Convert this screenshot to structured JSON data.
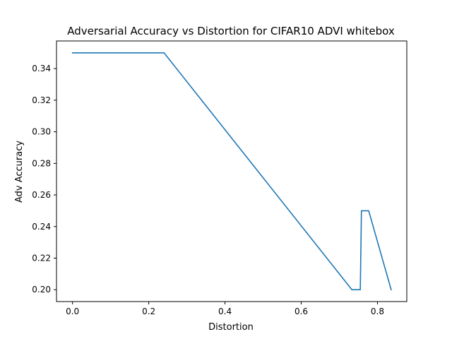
{
  "chart_data": {
    "type": "line",
    "title": "Adversarial Accuracy vs Distortion for CIFAR10 ADVI whitebox",
    "xlabel": "Distortion",
    "ylabel": "Adv Accuracy",
    "xlim": [
      -0.042,
      0.877
    ],
    "ylim": [
      0.1925,
      0.3575
    ],
    "xticks": [
      0.0,
      0.2,
      0.4,
      0.6,
      0.8
    ],
    "xtick_labels": [
      "0.0",
      "0.2",
      "0.4",
      "0.6",
      "0.8"
    ],
    "yticks": [
      0.2,
      0.22,
      0.24,
      0.26,
      0.28,
      0.3,
      0.32,
      0.34
    ],
    "ytick_labels": [
      "0.20",
      "0.22",
      "0.24",
      "0.26",
      "0.28",
      "0.30",
      "0.32",
      "0.34"
    ],
    "grid": false,
    "legend": "none",
    "series": [
      {
        "color": "#1f77b4",
        "x": [
          0.0,
          0.24,
          0.733,
          0.755,
          0.758,
          0.777,
          0.836
        ],
        "y": [
          0.35,
          0.35,
          0.2,
          0.2,
          0.25,
          0.25,
          0.2
        ]
      }
    ]
  }
}
